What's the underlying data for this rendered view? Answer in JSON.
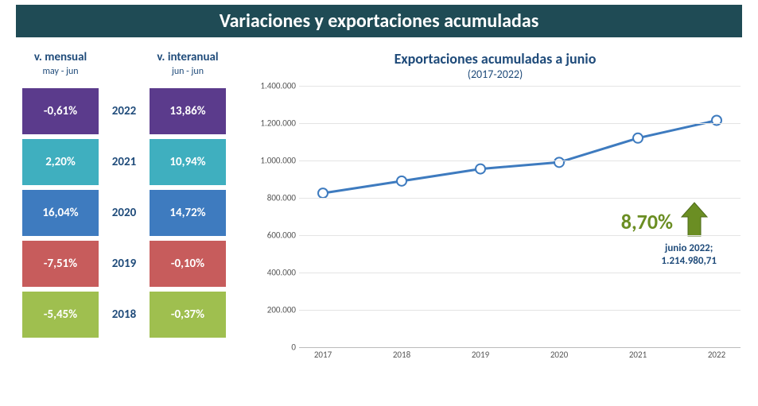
{
  "title": "Variaciones y exportaciones acumuladas",
  "title_bar_bg": "#1F4B55",
  "title_color": "#FFFFFF",
  "header_color": "#1F4B7A",
  "columns": {
    "mensual": {
      "header": "v. mensual",
      "sub": "may - jun"
    },
    "interanual": {
      "header": "v. interanual",
      "sub": "jun - jun"
    }
  },
  "rows": [
    {
      "year": "2022",
      "mensual": "-0,61%",
      "interanual": "13,86%",
      "color": "#5B3B8C"
    },
    {
      "year": "2021",
      "mensual": "2,20%",
      "interanual": "10,94%",
      "color": "#3FAFBF"
    },
    {
      "year": "2020",
      "mensual": "16,04%",
      "interanual": "14,72%",
      "color": "#3E7BBF"
    },
    {
      "year": "2019",
      "mensual": "-7,51%",
      "interanual": "-0,10%",
      "color": "#C75C5C"
    },
    {
      "year": "2018",
      "mensual": "-5,45%",
      "interanual": "-0,37%",
      "color": "#9FBF4F"
    }
  ],
  "chart": {
    "title": "Exportaciones acumuladas a junio",
    "subtitle": "(2017-2022)",
    "type": "line",
    "x_categories": [
      "2017",
      "2018",
      "2019",
      "2020",
      "2021",
      "2022"
    ],
    "values": [
      825000,
      890000,
      955000,
      990000,
      1120000,
      1214981
    ],
    "ylim": [
      0,
      1400000
    ],
    "ytick_step": 200000,
    "ytick_labels": [
      "0",
      "200.000",
      "400.000",
      "600.000",
      "800.000",
      "1.000.000",
      "1.200.000",
      "1.400.000"
    ],
    "line_color": "#3E7BBF",
    "line_width": 3,
    "marker_style": "circle",
    "marker_fill": "#FFFFFF",
    "marker_stroke": "#3E7BBF",
    "marker_radius": 6,
    "grid_color": "#E4E4E4",
    "axis_color": "#BBBBBB",
    "tick_font_size": 11,
    "tick_color": "#555555",
    "background_color": "#FFFFFF",
    "callout": {
      "pct": "8,70%",
      "pct_color": "#6B8E23",
      "line1": "junio 2022;",
      "line2": "1.214.980,71",
      "arrow_color": "#6B8E23"
    }
  }
}
